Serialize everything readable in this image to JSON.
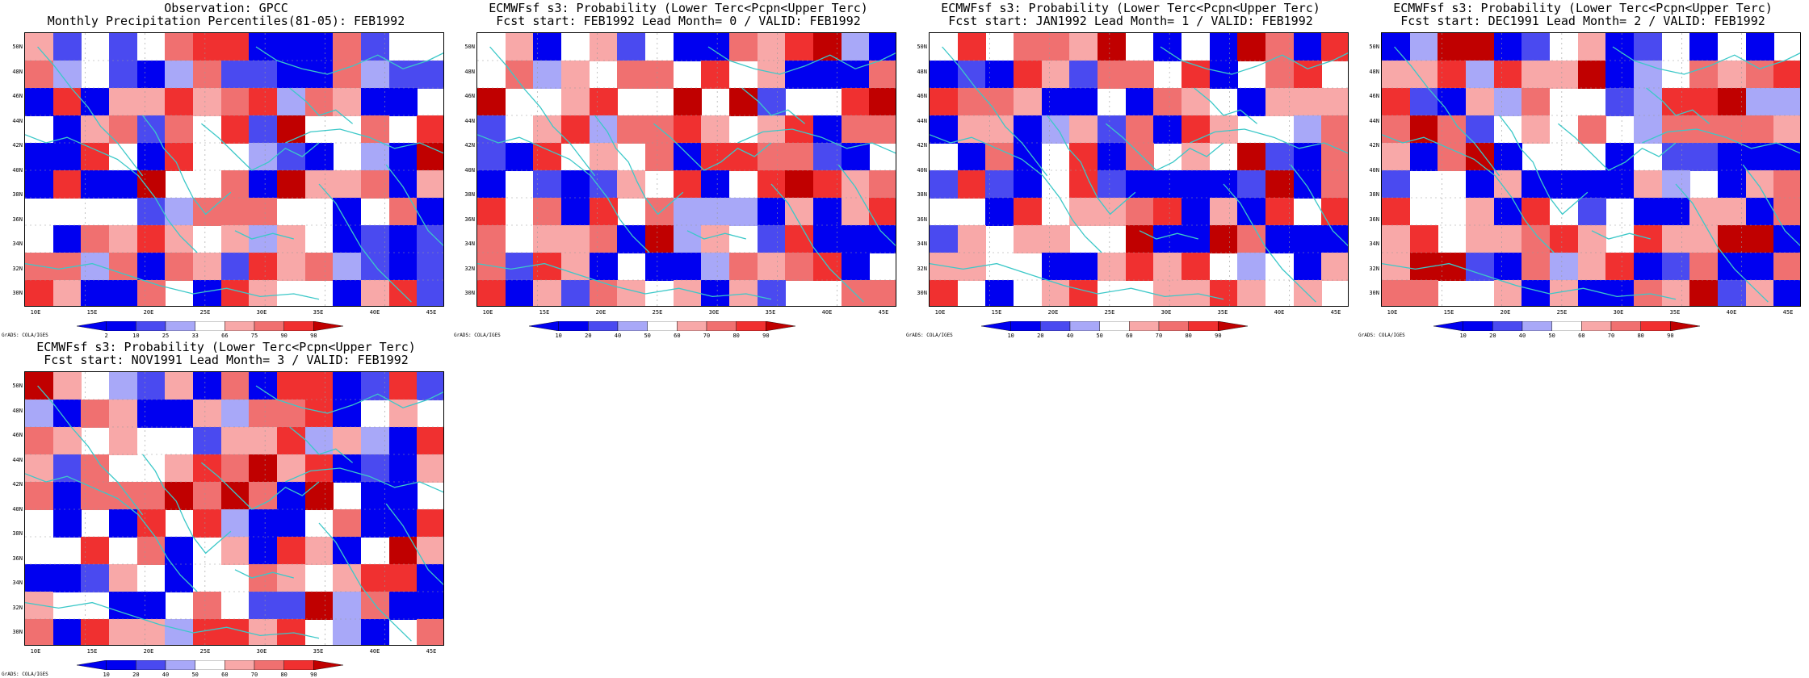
{
  "panels": [
    {
      "title_line1": "Observation: GPCC",
      "title_line2": "Monthly Precipitation Percentiles(81-05): FEB1992",
      "colorbar_labels": [
        "2",
        "10",
        "25",
        "33",
        "66",
        "75",
        "90",
        "98"
      ],
      "kind": "percentile"
    },
    {
      "title_line1": "ECMWFsf s3: Probability (Lower Terc<Pcpn<Upper Terc)",
      "title_line2": "Fcst start: FEB1992  Lead Month= 0 / VALID: FEB1992",
      "colorbar_labels": [
        "10",
        "20",
        "40",
        "50",
        "60",
        "70",
        "80",
        "90"
      ],
      "kind": "prob"
    },
    {
      "title_line1": "ECMWFsf s3: Probability (Lower Terc<Pcpn<Upper Terc)",
      "title_line2": "Fcst start: JAN1992  Lead Month= 1 / VALID: FEB1992",
      "colorbar_labels": [
        "10",
        "20",
        "40",
        "50",
        "60",
        "70",
        "80",
        "90"
      ],
      "kind": "prob"
    },
    {
      "title_line1": "ECMWFsf s3: Probability (Lower Terc<Pcpn<Upper Terc)",
      "title_line2": "Fcst start: DEC1991  Lead Month= 2 / VALID: FEB1992",
      "colorbar_labels": [
        "10",
        "20",
        "40",
        "50",
        "60",
        "70",
        "80",
        "90"
      ],
      "kind": "prob"
    },
    {
      "title_line1": "ECMWFsf s3: Probability (Lower Terc<Pcpn<Upper Terc)",
      "title_line2": "Fcst start: NOV1991  Lead Month= 3 / VALID: FEB1992",
      "colorbar_labels": [
        "10",
        "20",
        "40",
        "50",
        "60",
        "70",
        "80",
        "90"
      ],
      "kind": "prob"
    }
  ],
  "lat_labels": [
    "50N",
    "48N",
    "46N",
    "44N",
    "42N",
    "40N",
    "38N",
    "36N",
    "34N",
    "32N",
    "30N"
  ],
  "lon_labels": [
    "10E",
    "15E",
    "20E",
    "25E",
    "30E",
    "35E",
    "40E",
    "45E"
  ],
  "grads_credit": "GrADS: COLA/IGES",
  "colors": {
    "coast": "#3cc8c8",
    "deep_blue": "#0000f0",
    "blue": "#4a4af0",
    "light_blue": "#a8a8f8",
    "pink": "#f8a8a8",
    "light_red": "#f07070",
    "red": "#f03030",
    "dark_red": "#c00000"
  }
}
